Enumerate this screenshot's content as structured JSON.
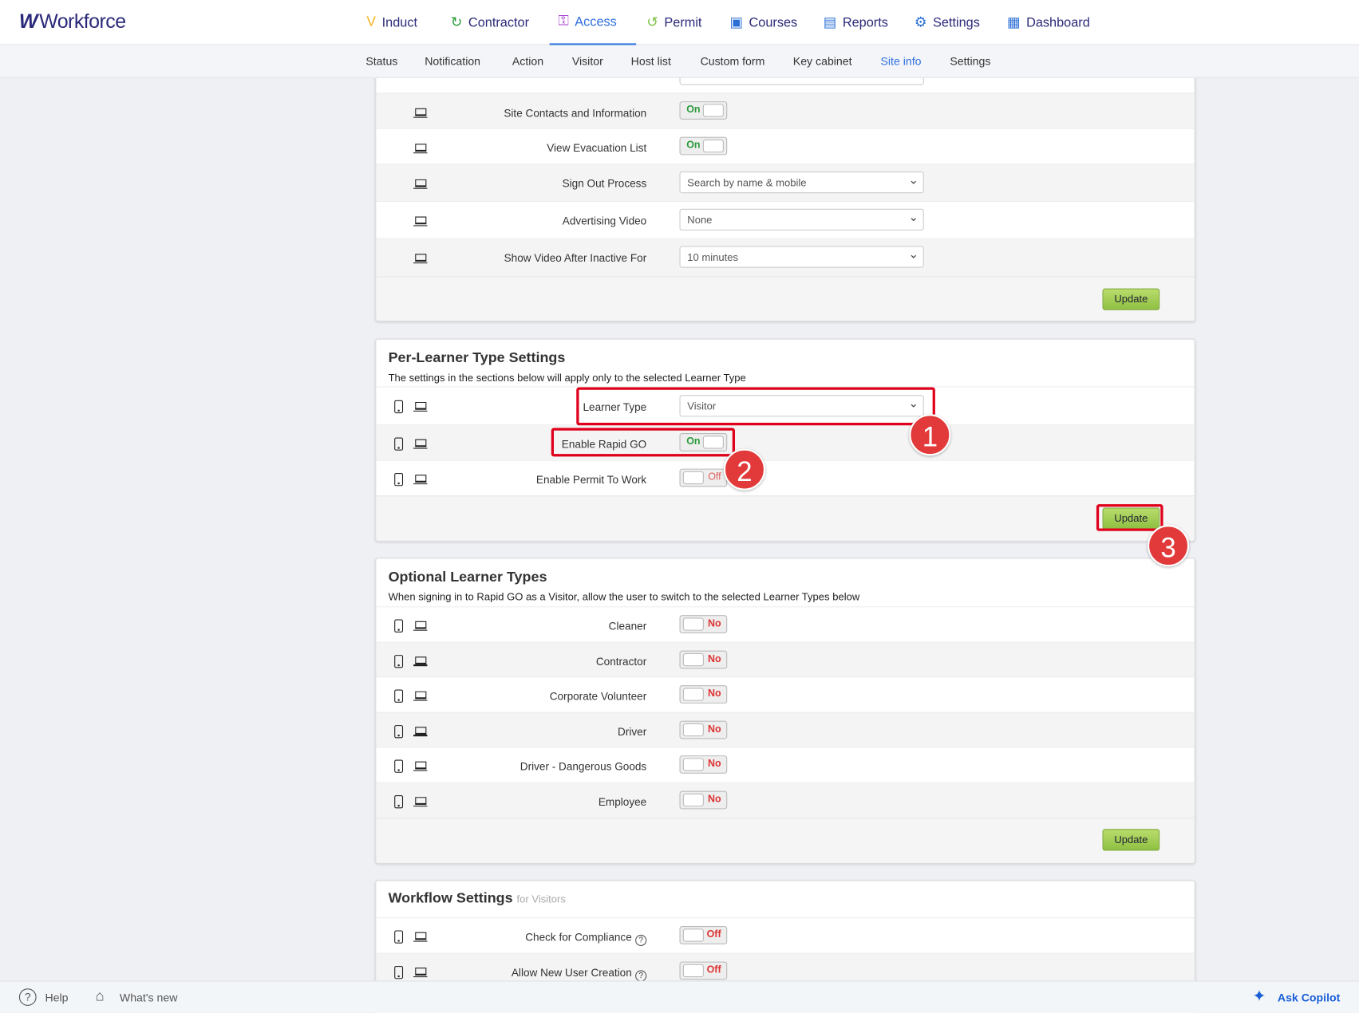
{
  "app": {
    "name": "Workforce"
  },
  "top_nav": [
    {
      "label": "Induct",
      "icon": "induct-icon",
      "color": "#f2b21c"
    },
    {
      "label": "Contractor",
      "icon": "contractor-icon",
      "color": "#2a9a3a"
    },
    {
      "label": "Access",
      "icon": "access-key-icon",
      "color": "#a53fd0",
      "active": true
    },
    {
      "label": "Permit",
      "icon": "permit-icon",
      "color": "#7cc243"
    },
    {
      "label": "Courses",
      "icon": "courses-icon",
      "color": "#2b6fd6"
    },
    {
      "label": "Reports",
      "icon": "reports-icon",
      "color": "#2b6fd6"
    },
    {
      "label": "Settings",
      "icon": "gear-icon",
      "color": "#2b6fd6"
    },
    {
      "label": "Dashboard",
      "icon": "dashboard-icon",
      "color": "#2b6fd6"
    }
  ],
  "sub_nav": [
    "Status",
    "Notification",
    "Action",
    "Visitor",
    "Host list",
    "Custom form",
    "Key cabinet",
    "Site info",
    "Settings"
  ],
  "sub_nav_active": "Site info",
  "site_panel": {
    "rows": [
      {
        "label": "Site Contacts and Information",
        "type": "toggle",
        "value": "On"
      },
      {
        "label": "View Evacuation List",
        "type": "toggle",
        "value": "On"
      },
      {
        "label": "Sign Out Process",
        "type": "select",
        "value": "Search by name & mobile"
      },
      {
        "label": "Advertising Video",
        "type": "select",
        "value": "None"
      },
      {
        "label": "Show Video After Inactive For",
        "type": "select",
        "value": "10 minutes"
      }
    ],
    "update": "Update"
  },
  "per_learner": {
    "title": "Per-Learner Type Settings",
    "subtitle": "The settings in the sections below will apply only to the selected Learner Type",
    "learner_type_label": "Learner Type",
    "learner_type_value": "Visitor",
    "rapid_go_label": "Enable Rapid GO",
    "rapid_go_value": "On",
    "permit_label": "Enable Permit To Work",
    "permit_value": "Off",
    "update": "Update"
  },
  "optional": {
    "title": "Optional Learner Types",
    "subtitle": "When signing in to Rapid GO as a Visitor, allow the user to switch to the selected Learner Types below",
    "rows": [
      {
        "label": "Cleaner",
        "value": "No"
      },
      {
        "label": "Contractor",
        "value": "No"
      },
      {
        "label": "Corporate Volunteer",
        "value": "No"
      },
      {
        "label": "Driver",
        "value": "No"
      },
      {
        "label": "Driver - Dangerous Goods",
        "value": "No"
      },
      {
        "label": "Employee",
        "value": "No"
      }
    ],
    "update": "Update"
  },
  "workflow": {
    "title": "Workflow Settings",
    "title_suffix": "for Visitors",
    "rows": [
      {
        "label": "Check for Compliance",
        "value": "Off"
      },
      {
        "label": "Allow New User Creation",
        "value": "Off"
      }
    ],
    "help_glyph": "?"
  },
  "annotations": [
    "1",
    "2",
    "3"
  ],
  "bottom": {
    "help": "Help",
    "whats_new": "What's new",
    "copilot": "Ask Copilot"
  }
}
